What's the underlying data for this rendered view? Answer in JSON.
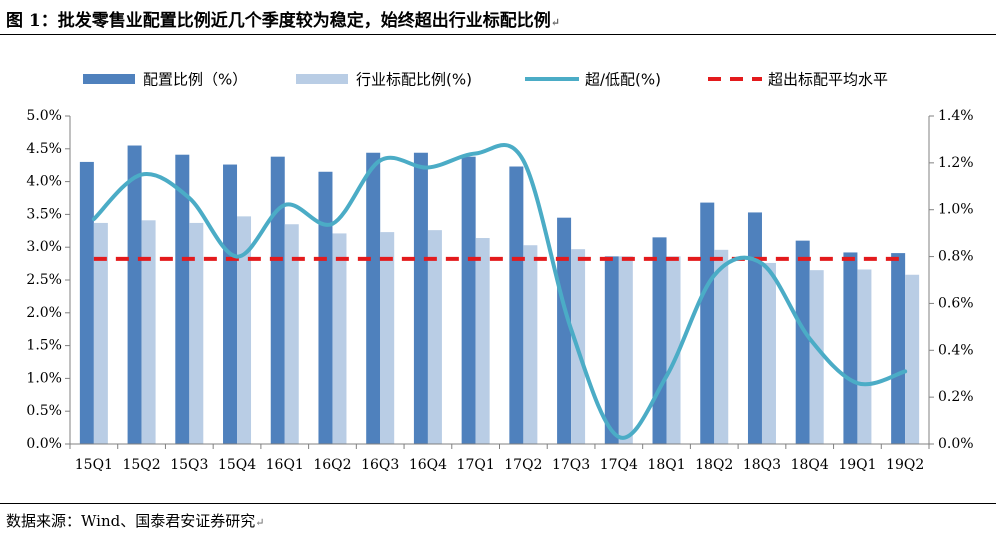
{
  "header": {
    "title": "图 1：批发零售业配置比例近几个季度较为稳定，始终超出行业标配比例",
    "mark": "↵"
  },
  "footer": {
    "source": "数据来源：Wind、国泰君安证券研究",
    "mark": "↵"
  },
  "colors": {
    "alloc": "#4f81bd",
    "benchmark": "#b9cde5",
    "excess": "#4bacc6",
    "avg": "#e31a1c"
  },
  "chart_data": {
    "type": "bar",
    "title": "",
    "categories": [
      "15Q1",
      "15Q2",
      "15Q3",
      "15Q4",
      "16Q1",
      "16Q2",
      "16Q3",
      "16Q4",
      "17Q1",
      "17Q2",
      "17Q3",
      "17Q4",
      "18Q1",
      "18Q2",
      "18Q3",
      "18Q4",
      "19Q1",
      "19Q2"
    ],
    "y_left": {
      "min": 0,
      "max": 0.05,
      "ticks": [
        "0.0%",
        "0.5%",
        "1.0%",
        "1.5%",
        "2.0%",
        "2.5%",
        "3.0%",
        "3.5%",
        "4.0%",
        "4.5%",
        "5.0%"
      ]
    },
    "y_right": {
      "min": 0,
      "max": 0.014,
      "ticks": [
        "0.0%",
        "0.2%",
        "0.4%",
        "0.6%",
        "0.8%",
        "1.0%",
        "1.2%",
        "1.4%"
      ]
    },
    "legend_position": "top",
    "grid": false,
    "series": [
      {
        "name": "配置比例（%）",
        "kind": "bar",
        "axis": "left",
        "values": [
          0.043,
          0.0455,
          0.0441,
          0.0426,
          0.0438,
          0.0415,
          0.0444,
          0.0444,
          0.0438,
          0.0423,
          0.0345,
          0.0286,
          0.0315,
          0.0368,
          0.0353,
          0.031,
          0.0292,
          0.0291
        ]
      },
      {
        "name": "行业标配比例(%)",
        "kind": "bar",
        "axis": "left",
        "values": [
          0.0337,
          0.0341,
          0.0337,
          0.0347,
          0.0335,
          0.0321,
          0.0323,
          0.0326,
          0.0314,
          0.0303,
          0.0297,
          0.0286,
          0.0286,
          0.0296,
          0.0276,
          0.0265,
          0.0266,
          0.0258
        ]
      },
      {
        "name": "超/低配(%)",
        "kind": "line",
        "axis": "right",
        "values": [
          0.0096,
          0.0115,
          0.0105,
          0.008,
          0.0102,
          0.0094,
          0.0121,
          0.0118,
          0.0124,
          0.0121,
          0.0049,
          0.0003,
          0.0029,
          0.0072,
          0.0077,
          0.0045,
          0.0026,
          0.0031
        ]
      },
      {
        "name": "超出标配平均水平",
        "kind": "hline",
        "axis": "right",
        "value": 0.0079
      }
    ]
  }
}
